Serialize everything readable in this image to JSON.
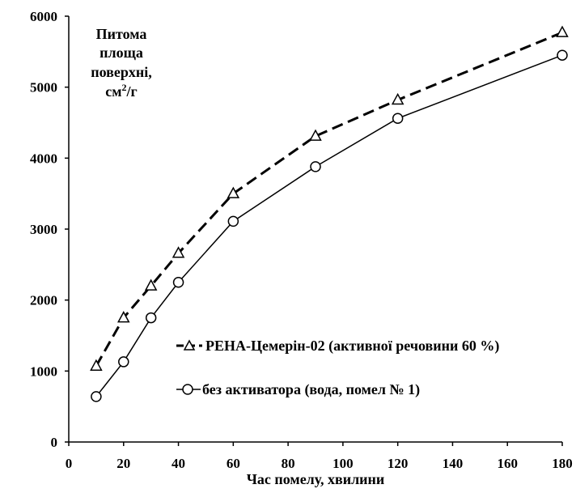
{
  "chart_data": {
    "type": "line",
    "title": "",
    "xlabel": "Час помелу, хвилини",
    "ylabel_lines": [
      "Питома",
      "площа",
      "поверхні,"
    ],
    "ylabel_unit": {
      "base": "см",
      "sup": "2",
      "tail": "/г"
    },
    "xlim": [
      0,
      180
    ],
    "ylim": [
      0,
      6000
    ],
    "x_ticks": [
      "0",
      "20",
      "40",
      "60",
      "80",
      "100",
      "120",
      "140",
      "160",
      "180"
    ],
    "y_ticks": [
      "0",
      "1000",
      "2000",
      "3000",
      "4000",
      "5000",
      "6000"
    ],
    "grid": false,
    "legend_position": "lower-right",
    "series": [
      {
        "name": "РЕНА-Цемерін-02 (активної речовини 60 %)",
        "marker": "triangle",
        "line_style": "dashed",
        "x": [
          10,
          20,
          30,
          40,
          60,
          90,
          120,
          180
        ],
        "y": [
          1070,
          1750,
          2200,
          2660,
          3500,
          4310,
          4820,
          5770
        ]
      },
      {
        "name": "без активатора (вода, помел № 1)",
        "marker": "circle",
        "line_style": "solid",
        "x": [
          10,
          20,
          30,
          40,
          60,
          90,
          120,
          180
        ],
        "y": [
          640,
          1130,
          1750,
          2250,
          3110,
          3880,
          4560,
          5450
        ]
      }
    ]
  }
}
